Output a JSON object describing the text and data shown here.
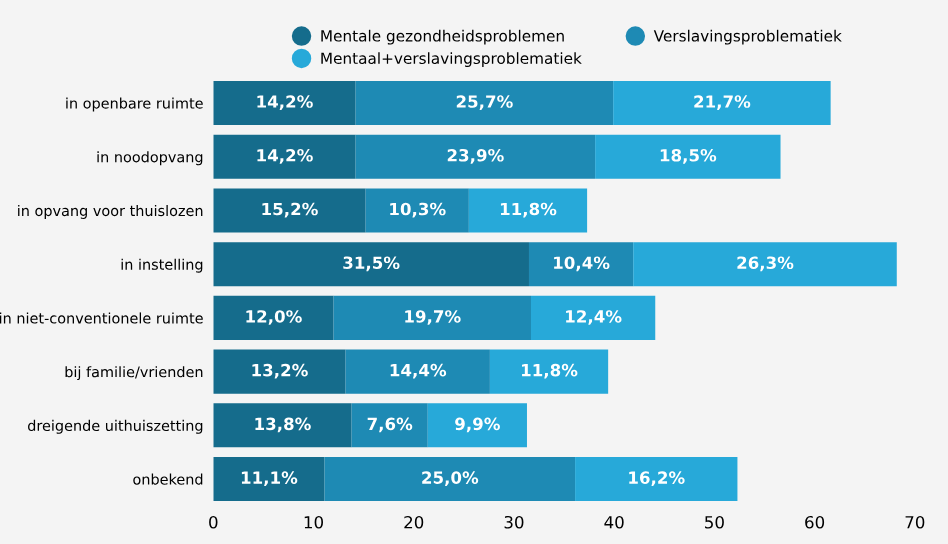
{
  "chart_data": {
    "type": "bar",
    "orientation": "horizontal",
    "stacked": true,
    "categories": [
      "in openbare ruimte",
      "in noodopvang",
      "in opvang voor thuislozen",
      "in instelling",
      "in niet-conventionele ruimte",
      "bij familie/vrienden",
      "dreigende uithuiszetting",
      "onbekend"
    ],
    "series": [
      {
        "name": "Mentale gezondheidsproblemen",
        "color": "#156c8c",
        "values": [
          14.2,
          14.2,
          15.2,
          31.5,
          12.0,
          13.2,
          13.8,
          11.1
        ],
        "value_labels": [
          "14,2%",
          "14,2%",
          "15,2%",
          "31,5%",
          "12,0%",
          "13,2%",
          "13,8%",
          "11,1%"
        ]
      },
      {
        "name": "Verslavingsproblematiek",
        "color": "#1e8ab4",
        "values": [
          25.7,
          23.9,
          10.3,
          10.4,
          19.7,
          14.4,
          7.6,
          25.0
        ],
        "value_labels": [
          "25,7%",
          "23,9%",
          "10,3%",
          "10,4%",
          "19,7%",
          "14,4%",
          "7,6%",
          "25,0%"
        ]
      },
      {
        "name": "Mentaal+verslavingsproblematiek",
        "color": "#27a9d9",
        "values": [
          21.7,
          18.5,
          11.8,
          26.3,
          12.4,
          11.8,
          9.9,
          16.2
        ],
        "value_labels": [
          "21,7%",
          "18,5%",
          "11,8%",
          "26,3%",
          "12,4%",
          "11,8%",
          "9,9%",
          "16,2%"
        ]
      }
    ],
    "xlim": [
      0,
      70
    ],
    "xticks": [
      0,
      10,
      20,
      30,
      40,
      50,
      60,
      70
    ],
    "grid": false,
    "legend": "top"
  }
}
